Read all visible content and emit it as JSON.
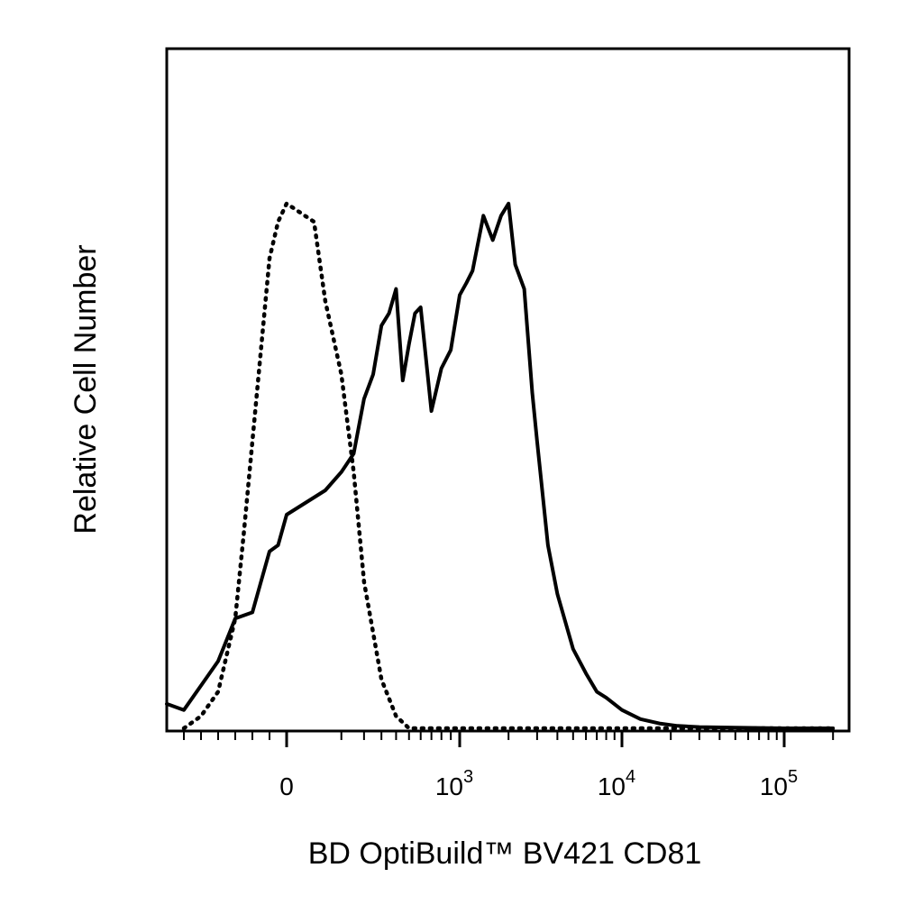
{
  "chart_data": {
    "type": "line",
    "title": "",
    "xlabel": "BD OptiBuild™ BV421 CD81",
    "ylabel": "Relative Cell Number",
    "x_scale": "biexponential",
    "xlim": [
      -700,
      200000
    ],
    "ylim": [
      0,
      1
    ],
    "grid": false,
    "legend": "none",
    "x_ticks": [
      {
        "value": 0,
        "label": "0",
        "sup": ""
      },
      {
        "value": 1000,
        "label": "10",
        "sup": "3"
      },
      {
        "value": 10000,
        "label": "10",
        "sup": "4"
      },
      {
        "value": 100000,
        "label": "10",
        "sup": "5"
      }
    ],
    "series": [
      {
        "style": "solid",
        "color": "#000000",
        "x": [
          -700,
          -600,
          -500,
          -400,
          -300,
          -200,
          -150,
          -100,
          -50,
          0,
          50,
          100,
          150,
          200,
          250,
          300,
          350,
          400,
          450,
          500,
          550,
          600,
          700,
          800,
          900,
          1000,
          1100,
          1200,
          1400,
          1600,
          1800,
          2000,
          2200,
          2500,
          2800,
          3000,
          3500,
          4000,
          5000,
          6000,
          7000,
          8000,
          10000,
          13000,
          17000,
          22000,
          30000,
          50000,
          100000,
          200000
        ],
        "y": [
          0.04,
          0.03,
          0.07,
          0.11,
          0.18,
          0.19,
          0.24,
          0.29,
          0.3,
          0.35,
          0.39,
          0.42,
          0.45,
          0.54,
          0.58,
          0.66,
          0.68,
          0.72,
          0.57,
          0.63,
          0.68,
          0.69,
          0.52,
          0.59,
          0.62,
          0.71,
          0.73,
          0.75,
          0.84,
          0.8,
          0.84,
          0.86,
          0.76,
          0.72,
          0.55,
          0.47,
          0.3,
          0.22,
          0.13,
          0.09,
          0.06,
          0.05,
          0.03,
          0.015,
          0.008,
          0.004,
          0.002,
          0.001,
          0.0,
          0.0
        ]
      },
      {
        "style": "dotted",
        "color": "#000000",
        "x": [
          -600,
          -500,
          -400,
          -300,
          -250,
          -200,
          -150,
          -100,
          -50,
          0,
          25,
          50,
          100,
          150,
          200,
          300,
          400,
          500,
          600,
          800,
          1000,
          200000
        ],
        "y": [
          0.0,
          0.02,
          0.06,
          0.18,
          0.32,
          0.47,
          0.62,
          0.77,
          0.83,
          0.86,
          0.83,
          0.7,
          0.58,
          0.42,
          0.24,
          0.08,
          0.02,
          0.0,
          0.0,
          0.0,
          0.0,
          0.0
        ]
      }
    ]
  }
}
